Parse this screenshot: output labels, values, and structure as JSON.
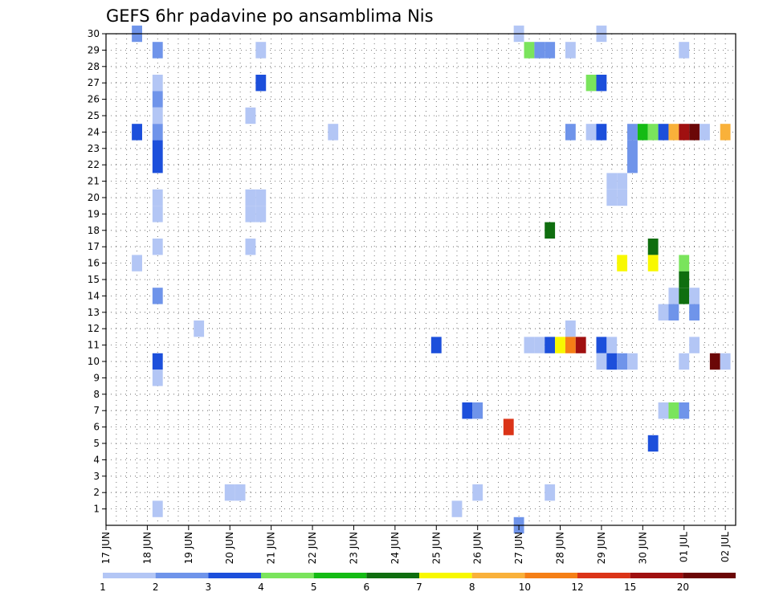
{
  "chart_data": {
    "type": "heatmap",
    "title": "GEFS 6hr padavine po ansamblima Nis",
    "xlabel": "",
    "ylabel": "",
    "x_ticks": [
      "17 JUN",
      "18 JUN",
      "19 JUN",
      "20 JUN",
      "21 JUN",
      "22 JUN",
      "23 JUN",
      "24 JUN",
      "25 JUN",
      "26 JUN",
      "27 JUN",
      "28 JUN",
      "29 JUN",
      "30 JUN",
      "01 JUL",
      "02 JUL"
    ],
    "xlim_days": [
      0,
      15.25
    ],
    "y_ticks": [
      "1",
      "2",
      "3",
      "4",
      "5",
      "6",
      "7",
      "8",
      "9",
      "10",
      "11",
      "12",
      "13",
      "14",
      "15",
      "16",
      "17",
      "18",
      "19",
      "20",
      "21",
      "22",
      "23",
      "24",
      "25",
      "26",
      "27",
      "28",
      "29",
      "30"
    ],
    "ylim": [
      0,
      30
    ],
    "grid": "dotted",
    "color_levels": [
      {
        "label": "1",
        "color": "#b3c6f5"
      },
      {
        "label": "2",
        "color": "#6f94ea"
      },
      {
        "label": "3",
        "color": "#1c4fdb"
      },
      {
        "label": "4",
        "color": "#7ae45c"
      },
      {
        "label": "5",
        "color": "#14bb14"
      },
      {
        "label": "6",
        "color": "#0f6e0f"
      },
      {
        "label": "7",
        "color": "#f8f800"
      },
      {
        "label": "8",
        "color": "#f9b13a"
      },
      {
        "label": "10",
        "color": "#f57f16"
      },
      {
        "label": "12",
        "color": "#db3418"
      },
      {
        "label": "15",
        "color": "#a01010"
      },
      {
        "label": "20",
        "color": "#6b0707"
      }
    ],
    "cells": [
      {
        "member": 30,
        "day": 0.75,
        "level": 1
      },
      {
        "member": 30,
        "day": 10.0,
        "level": 0
      },
      {
        "member": 30,
        "day": 12.0,
        "level": 0
      },
      {
        "member": 29,
        "day": 1.25,
        "level": 1
      },
      {
        "member": 29,
        "day": 3.75,
        "level": 0
      },
      {
        "member": 29,
        "day": 10.25,
        "level": 3
      },
      {
        "member": 29,
        "day": 10.5,
        "level": 1
      },
      {
        "member": 29,
        "day": 10.75,
        "level": 1
      },
      {
        "member": 29,
        "day": 11.25,
        "level": 0
      },
      {
        "member": 29,
        "day": 14.0,
        "level": 0
      },
      {
        "member": 27,
        "day": 1.25,
        "level": 0
      },
      {
        "member": 27,
        "day": 3.75,
        "level": 2
      },
      {
        "member": 27,
        "day": 11.75,
        "level": 3
      },
      {
        "member": 27,
        "day": 12.0,
        "level": 2
      },
      {
        "member": 26,
        "day": 1.25,
        "level": 1
      },
      {
        "member": 25,
        "day": 1.25,
        "level": 0
      },
      {
        "member": 25,
        "day": 3.5,
        "level": 0
      },
      {
        "member": 24,
        "day": 0.75,
        "level": 2
      },
      {
        "member": 24,
        "day": 1.25,
        "level": 1
      },
      {
        "member": 24,
        "day": 5.5,
        "level": 0
      },
      {
        "member": 24,
        "day": 11.25,
        "level": 1
      },
      {
        "member": 24,
        "day": 11.75,
        "level": 0
      },
      {
        "member": 24,
        "day": 12.0,
        "level": 2
      },
      {
        "member": 24,
        "day": 12.75,
        "level": 1
      },
      {
        "member": 24,
        "day": 13.0,
        "level": 4
      },
      {
        "member": 24,
        "day": 13.25,
        "level": 3
      },
      {
        "member": 24,
        "day": 13.5,
        "level": 2
      },
      {
        "member": 24,
        "day": 13.75,
        "level": 7
      },
      {
        "member": 24,
        "day": 14.0,
        "level": 10
      },
      {
        "member": 24,
        "day": 14.25,
        "level": 11
      },
      {
        "member": 24,
        "day": 14.5,
        "level": 0
      },
      {
        "member": 24,
        "day": 15.0,
        "level": 7
      },
      {
        "member": 23,
        "day": 1.25,
        "level": 2
      },
      {
        "member": 23,
        "day": 12.75,
        "level": 1
      },
      {
        "member": 22,
        "day": 1.25,
        "level": 2
      },
      {
        "member": 22,
        "day": 12.75,
        "level": 1
      },
      {
        "member": 21,
        "day": 12.25,
        "level": 0
      },
      {
        "member": 21,
        "day": 12.5,
        "level": 0
      },
      {
        "member": 20,
        "day": 1.25,
        "level": 0
      },
      {
        "member": 20,
        "day": 3.5,
        "level": 0
      },
      {
        "member": 20,
        "day": 3.75,
        "level": 0
      },
      {
        "member": 20,
        "day": 12.25,
        "level": 0
      },
      {
        "member": 20,
        "day": 12.5,
        "level": 0
      },
      {
        "member": 19,
        "day": 1.25,
        "level": 0
      },
      {
        "member": 19,
        "day": 3.5,
        "level": 0
      },
      {
        "member": 19,
        "day": 3.75,
        "level": 0
      },
      {
        "member": 18,
        "day": 10.75,
        "level": 5
      },
      {
        "member": 17,
        "day": 1.25,
        "level": 0
      },
      {
        "member": 17,
        "day": 3.5,
        "level": 0
      },
      {
        "member": 17,
        "day": 13.25,
        "level": 5
      },
      {
        "member": 16,
        "day": 0.75,
        "level": 0
      },
      {
        "member": 16,
        "day": 12.5,
        "level": 6
      },
      {
        "member": 16,
        "day": 13.25,
        "level": 6
      },
      {
        "member": 16,
        "day": 14.0,
        "level": 3
      },
      {
        "member": 15,
        "day": 14.0,
        "level": 5
      },
      {
        "member": 14,
        "day": 1.25,
        "level": 1
      },
      {
        "member": 14,
        "day": 13.75,
        "level": 0
      },
      {
        "member": 14,
        "day": 14.0,
        "level": 5
      },
      {
        "member": 14,
        "day": 14.25,
        "level": 0
      },
      {
        "member": 13,
        "day": 13.5,
        "level": 0
      },
      {
        "member": 13,
        "day": 13.75,
        "level": 1
      },
      {
        "member": 13,
        "day": 14.25,
        "level": 1
      },
      {
        "member": 12,
        "day": 2.25,
        "level": 0
      },
      {
        "member": 12,
        "day": 11.25,
        "level": 0
      },
      {
        "member": 11,
        "day": 8.0,
        "level": 2
      },
      {
        "member": 11,
        "day": 10.25,
        "level": 0
      },
      {
        "member": 11,
        "day": 10.5,
        "level": 0
      },
      {
        "member": 11,
        "day": 10.75,
        "level": 2
      },
      {
        "member": 11,
        "day": 11.0,
        "level": 6
      },
      {
        "member": 11,
        "day": 11.25,
        "level": 8
      },
      {
        "member": 11,
        "day": 11.5,
        "level": 10
      },
      {
        "member": 11,
        "day": 12.0,
        "level": 2
      },
      {
        "member": 11,
        "day": 12.25,
        "level": 0
      },
      {
        "member": 11,
        "day": 14.25,
        "level": 0
      },
      {
        "member": 10,
        "day": 1.25,
        "level": 2
      },
      {
        "member": 10,
        "day": 12.0,
        "level": 0
      },
      {
        "member": 10,
        "day": 12.25,
        "level": 2
      },
      {
        "member": 10,
        "day": 12.5,
        "level": 1
      },
      {
        "member": 10,
        "day": 12.75,
        "level": 0
      },
      {
        "member": 10,
        "day": 14.0,
        "level": 0
      },
      {
        "member": 10,
        "day": 14.75,
        "level": 11
      },
      {
        "member": 10,
        "day": 15.0,
        "level": 0
      },
      {
        "member": 9,
        "day": 1.25,
        "level": 0
      },
      {
        "member": 7,
        "day": 8.75,
        "level": 2
      },
      {
        "member": 7,
        "day": 9.0,
        "level": 1
      },
      {
        "member": 7,
        "day": 13.5,
        "level": 0
      },
      {
        "member": 7,
        "day": 13.75,
        "level": 3
      },
      {
        "member": 7,
        "day": 14.0,
        "level": 1
      },
      {
        "member": 6,
        "day": 9.75,
        "level": 9
      },
      {
        "member": 5,
        "day": 13.25,
        "level": 2
      },
      {
        "member": 2,
        "day": 3.0,
        "level": 0
      },
      {
        "member": 2,
        "day": 3.25,
        "level": 0
      },
      {
        "member": 2,
        "day": 9.0,
        "level": 0
      },
      {
        "member": 2,
        "day": 10.75,
        "level": 0
      },
      {
        "member": 1,
        "day": 1.25,
        "level": 0
      },
      {
        "member": 1,
        "day": 8.5,
        "level": 0
      },
      {
        "member": 0,
        "day": 10.0,
        "level": 1
      }
    ]
  }
}
